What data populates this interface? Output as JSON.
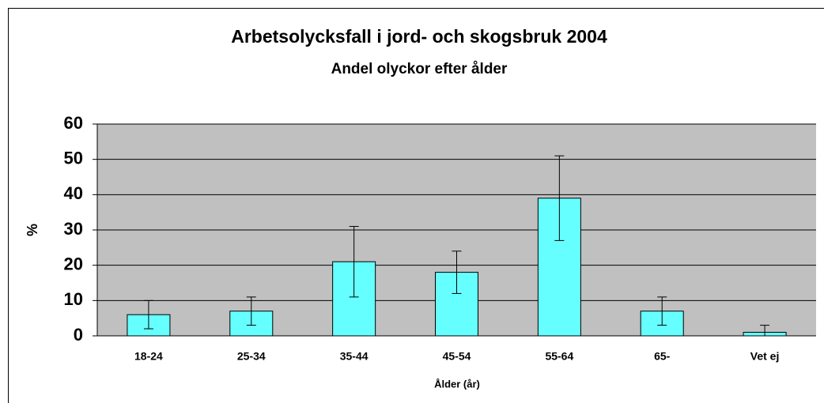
{
  "chart_data": {
    "type": "bar",
    "title": "Arbetsolycksfall i jord- och skogsbruk 2004",
    "subtitle": "Andel olyckor efter ålder",
    "x_label": "Ålder (år)",
    "y_label": "%",
    "categories": [
      "18-24",
      "25-34",
      "35-44",
      "45-54",
      "55-64",
      "65-",
      "Vet ej"
    ],
    "values": [
      6,
      7,
      21,
      18,
      39,
      7,
      1
    ],
    "errors": [
      4,
      4,
      10,
      6,
      12,
      4,
      2
    ],
    "color": "#66ffff",
    "ylim": [
      0,
      60
    ],
    "yticks": [
      0,
      10,
      20,
      30,
      40,
      50,
      60
    ],
    "grid": true
  }
}
